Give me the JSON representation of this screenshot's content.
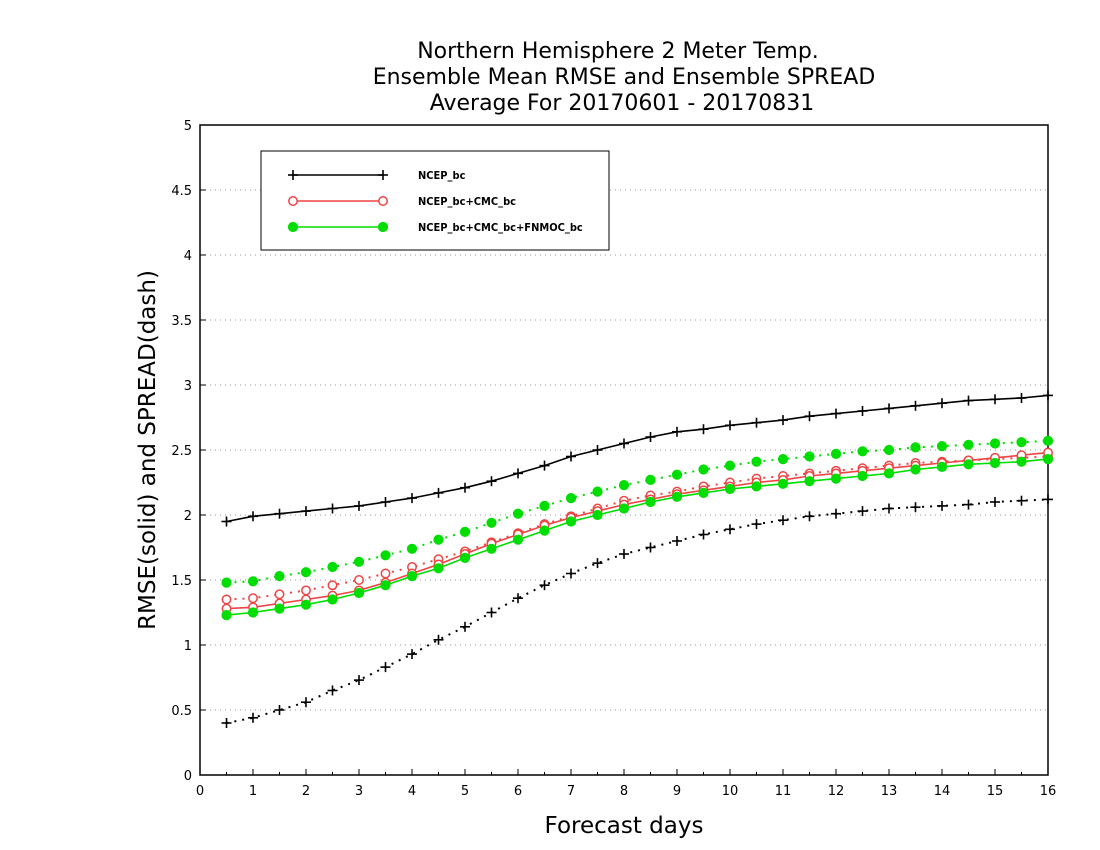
{
  "chart_data": {
    "type": "line",
    "title": [
      "Northern Hemisphere 2 Meter Temp.",
      "Ensemble Mean RMSE and Ensemble SPREAD",
      "Average For 20170601 - 20170831"
    ],
    "xlabel": "Forecast days",
    "ylabel": "RMSE(solid) and SPREAD(dash)",
    "xlim": [
      0,
      16
    ],
    "ylim": [
      0,
      5
    ],
    "xticks": [
      0,
      1,
      2,
      3,
      4,
      5,
      6,
      7,
      8,
      9,
      10,
      11,
      12,
      13,
      14,
      15,
      16
    ],
    "yticks": [
      0,
      0.5,
      1,
      1.5,
      2,
      2.5,
      3,
      3.5,
      4,
      4.5,
      5
    ],
    "ytick_labels": [
      "0",
      "0.5",
      "1",
      "1.5",
      "2",
      "2.5",
      "3",
      "3.5",
      "4",
      "4.5",
      "5"
    ],
    "grid": "horizontal-dotted",
    "legend_position": "top-left",
    "x": [
      0.5,
      1,
      1.5,
      2,
      2.5,
      3,
      3.5,
      4,
      4.5,
      5,
      5.5,
      6,
      6.5,
      7,
      7.5,
      8,
      8.5,
      9,
      9.5,
      10,
      10.5,
      11,
      11.5,
      12,
      12.5,
      13,
      13.5,
      14,
      14.5,
      15,
      15.5,
      16
    ],
    "series": [
      {
        "name": "NCEP_bc",
        "color": "#000000",
        "marker": "plus",
        "rmse": [
          1.95,
          1.99,
          2.01,
          2.03,
          2.05,
          2.07,
          2.1,
          2.13,
          2.17,
          2.21,
          2.26,
          2.32,
          2.38,
          2.45,
          2.5,
          2.55,
          2.6,
          2.64,
          2.66,
          2.69,
          2.71,
          2.73,
          2.76,
          2.78,
          2.8,
          2.82,
          2.84,
          2.86,
          2.88,
          2.89,
          2.9,
          2.92
        ],
        "spread": [
          0.4,
          0.44,
          0.5,
          0.56,
          0.65,
          0.73,
          0.83,
          0.93,
          1.04,
          1.14,
          1.25,
          1.36,
          1.46,
          1.55,
          1.63,
          1.7,
          1.75,
          1.8,
          1.85,
          1.89,
          1.93,
          1.96,
          1.99,
          2.01,
          2.03,
          2.05,
          2.06,
          2.07,
          2.08,
          2.1,
          2.11,
          2.12
        ]
      },
      {
        "name": "NCEP_bc+CMC_bc",
        "color": "#ee4444",
        "marker": "open-circle",
        "rmse": [
          1.28,
          1.29,
          1.32,
          1.35,
          1.38,
          1.42,
          1.48,
          1.55,
          1.62,
          1.7,
          1.78,
          1.85,
          1.92,
          1.98,
          2.03,
          2.08,
          2.12,
          2.16,
          2.19,
          2.22,
          2.25,
          2.27,
          2.3,
          2.32,
          2.34,
          2.36,
          2.38,
          2.4,
          2.42,
          2.44,
          2.46,
          2.48
        ],
        "spread": [
          1.35,
          1.36,
          1.39,
          1.42,
          1.46,
          1.5,
          1.55,
          1.6,
          1.66,
          1.72,
          1.79,
          1.86,
          1.93,
          1.99,
          2.05,
          2.11,
          2.15,
          2.18,
          2.22,
          2.25,
          2.28,
          2.3,
          2.32,
          2.34,
          2.36,
          2.38,
          2.4,
          2.41,
          2.42,
          2.43,
          2.44,
          2.45
        ]
      },
      {
        "name": "NCEP_bc+CMC_bc+FNMOC_bc",
        "color": "#00dd00",
        "marker": "filled-circle",
        "rmse": [
          1.23,
          1.25,
          1.28,
          1.31,
          1.35,
          1.4,
          1.46,
          1.53,
          1.59,
          1.67,
          1.74,
          1.81,
          1.88,
          1.95,
          2.0,
          2.05,
          2.1,
          2.14,
          2.17,
          2.2,
          2.22,
          2.24,
          2.26,
          2.28,
          2.3,
          2.32,
          2.35,
          2.37,
          2.39,
          2.4,
          2.41,
          2.43
        ],
        "spread": [
          1.48,
          1.49,
          1.53,
          1.56,
          1.6,
          1.64,
          1.69,
          1.74,
          1.81,
          1.87,
          1.94,
          2.01,
          2.07,
          2.13,
          2.18,
          2.23,
          2.27,
          2.31,
          2.35,
          2.38,
          2.41,
          2.43,
          2.45,
          2.47,
          2.49,
          2.5,
          2.52,
          2.53,
          2.54,
          2.55,
          2.56,
          2.57
        ]
      }
    ]
  }
}
